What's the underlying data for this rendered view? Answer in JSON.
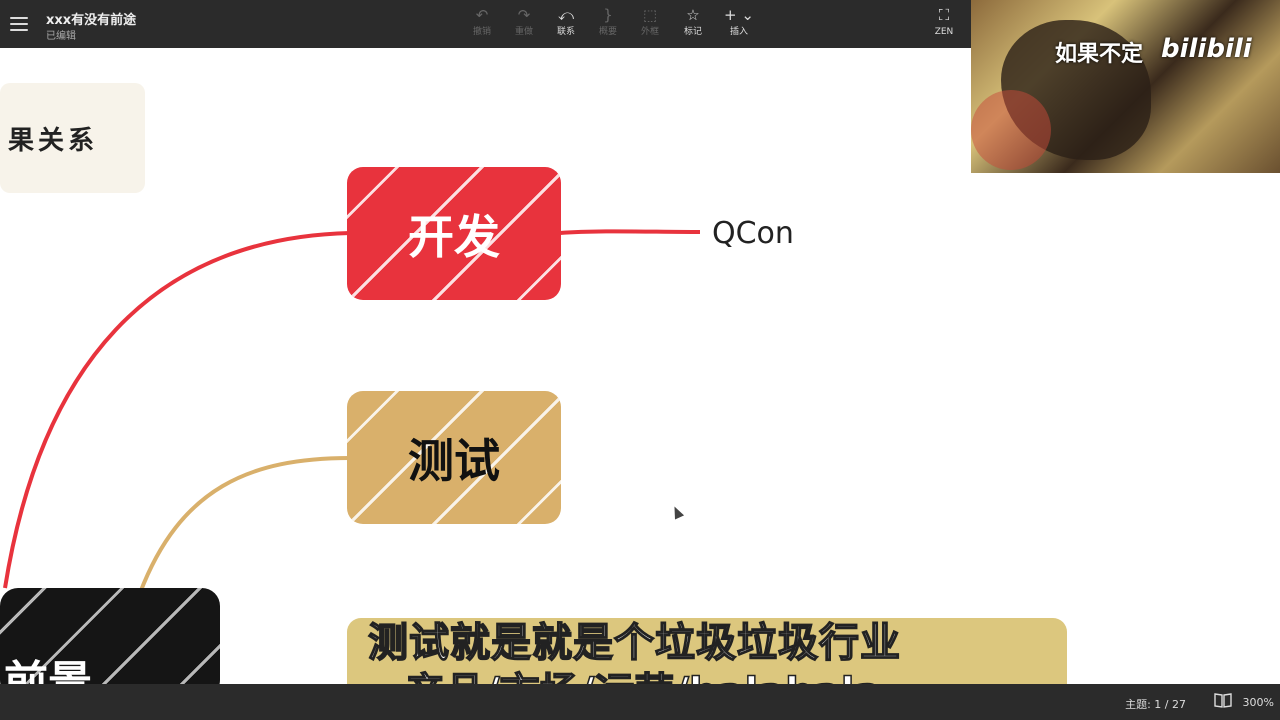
{
  "topbar": {
    "title": "xxx有没有前途",
    "status": "已编辑",
    "tools": [
      {
        "icon": "undo-icon",
        "label": "撤销",
        "enabled": false
      },
      {
        "icon": "redo-icon",
        "label": "重做",
        "enabled": false
      },
      {
        "icon": "link-icon",
        "label": "联系",
        "enabled": true
      },
      {
        "icon": "summary-icon",
        "label": "概要",
        "enabled": false
      },
      {
        "icon": "frame-icon",
        "label": "外框",
        "enabled": false
      },
      {
        "icon": "star-icon",
        "label": "标记",
        "enabled": true
      },
      {
        "icon": "plus-icon",
        "label": "插入",
        "enabled": true
      },
      {
        "icon": "fullscreen-icon",
        "label": "ZEN",
        "enabled": true
      }
    ]
  },
  "video": {
    "watermark": "如果不定",
    "logo": "bilibili"
  },
  "canvas": {
    "partial_node_text": "果关系",
    "node_dev": "开发",
    "dev_child": "QCon",
    "node_test": "测试",
    "dark_node_text": "前景"
  },
  "subtitles": {
    "line1": "测试就是就是个垃圾垃圾行业",
    "line2": "产品/市场/运营/balabala"
  },
  "bottombar": {
    "topic_count": "主题: 1 / 27",
    "zoom": "300%"
  },
  "colors": {
    "dev": "#e8333d",
    "test": "#d9b06b",
    "bar": "#2b2b2b"
  }
}
